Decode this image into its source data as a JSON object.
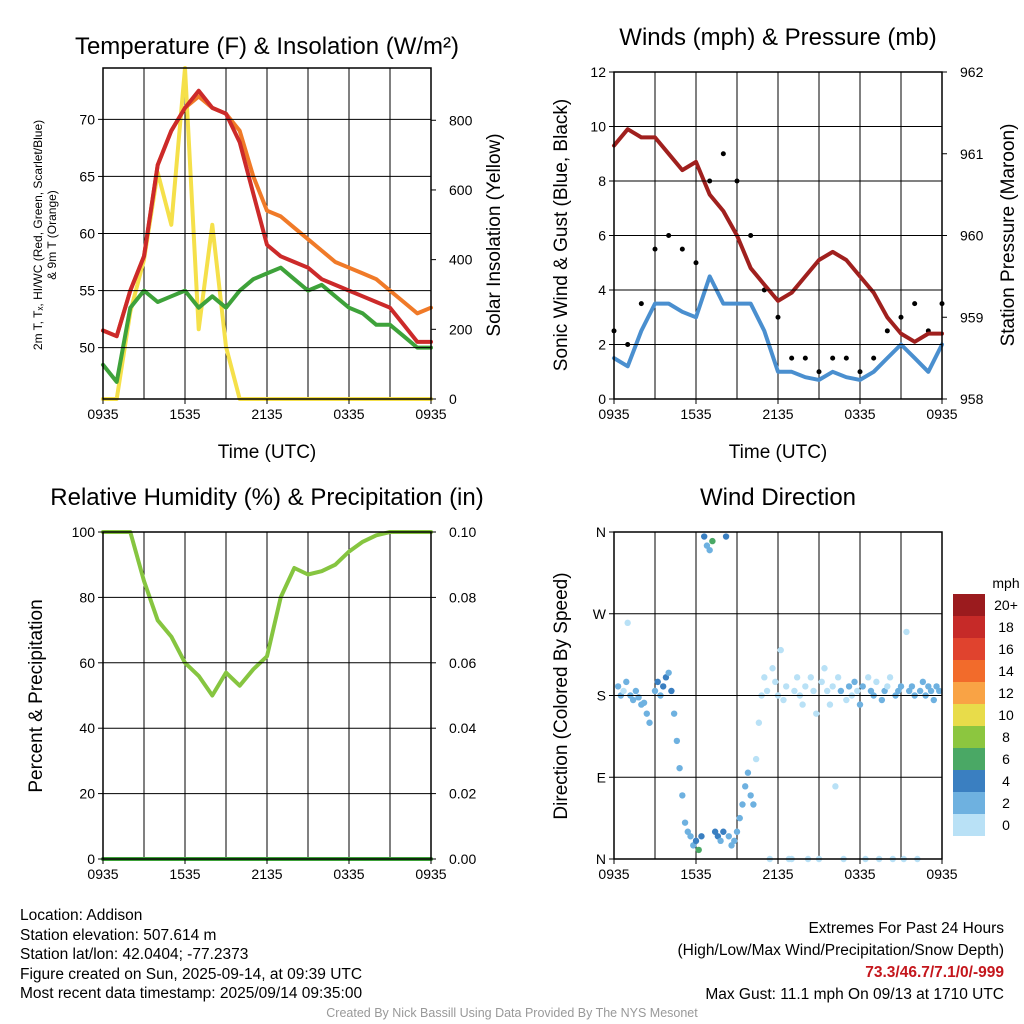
{
  "time_ticks": [
    "0935",
    "1535",
    "2135",
    "0335",
    "0935"
  ],
  "chart_data": [
    {
      "type": "line",
      "title": "Temperature (F) & Insolation (W/m²)",
      "xlabel": "Time (UTC)",
      "ylabel_left_lines": [
        "2m T, Tₓ, HI/WC (Red, Green, Scarlet/Blue)",
        "& 9m T (Orange)"
      ],
      "ylabel_right": "Solar Insolation (Yellow)",
      "ylim": [
        45.5,
        74.5
      ],
      "y2lim": [
        0,
        950
      ],
      "yticks": [
        50,
        55,
        60,
        65,
        70
      ],
      "y2ticks": [
        0,
        200,
        400,
        600,
        800
      ],
      "x_hours": [
        0,
        1,
        2,
        3,
        4,
        5,
        6,
        7,
        8,
        9,
        10,
        11,
        12,
        13,
        14,
        15,
        16,
        17,
        18,
        19,
        20,
        21,
        22,
        23,
        24
      ],
      "series": [
        {
          "color": "#f07a28",
          "values": [
            51.5,
            51,
            55,
            58,
            66,
            69,
            71,
            72,
            71,
            70.5,
            69,
            65,
            62,
            61.5,
            60.5,
            59.5,
            58.5,
            57.5,
            57,
            56.5,
            56,
            55,
            54,
            53,
            53.5
          ]
        },
        {
          "color": "#cc2a2a",
          "values": [
            51.5,
            51,
            55,
            58,
            66,
            69,
            71,
            72.5,
            71,
            70.5,
            68,
            63.5,
            59,
            58,
            57.5,
            57,
            56,
            55.5,
            55,
            54.5,
            54,
            53.5,
            52,
            50.5,
            50.5
          ]
        },
        {
          "color": "#3ea23a",
          "values": [
            48.5,
            47,
            53.5,
            55,
            54,
            54.5,
            55,
            53.5,
            54.5,
            53.5,
            55,
            56,
            56.5,
            57,
            56,
            55,
            55.5,
            54.5,
            53.5,
            53,
            52,
            52,
            51,
            50,
            50
          ]
        },
        {
          "color": "#f5e04a",
          "y_axis": "right",
          "values": [
            0,
            0,
            250,
            400,
            650,
            500,
            950,
            200,
            500,
            150,
            0,
            0,
            0,
            0,
            0,
            0,
            0,
            0,
            0,
            0,
            0,
            0,
            0,
            0,
            0
          ]
        }
      ]
    },
    {
      "type": "line",
      "title": "Winds (mph) & Pressure (mb)",
      "xlabel": "Time (UTC)",
      "ylabel_left": "Sonic Wind & Gust (Blue, Black)",
      "ylabel_right": "Station Pressure (Maroon)",
      "ylim": [
        0,
        12
      ],
      "y2lim": [
        958,
        962
      ],
      "yticks": [
        0,
        2,
        4,
        6,
        8,
        10,
        12
      ],
      "y2ticks": [
        958,
        959,
        960,
        961,
        962
      ],
      "x_hours": [
        0,
        1,
        2,
        3,
        4,
        5,
        6,
        7,
        8,
        9,
        10,
        11,
        12,
        13,
        14,
        15,
        16,
        17,
        18,
        19,
        20,
        21,
        22,
        23,
        24
      ],
      "series": [
        {
          "color": "#4a8fcf",
          "values": [
            1.5,
            1.2,
            2.5,
            3.5,
            3.5,
            3.2,
            3,
            4.5,
            3.5,
            3.5,
            3.5,
            2.5,
            1,
            1,
            0.8,
            0.7,
            1,
            0.8,
            0.7,
            1,
            1.5,
            2,
            1.5,
            1,
            2
          ]
        },
        {
          "color": "#000000",
          "values": [
            2.5,
            2,
            3.5,
            5.5,
            6,
            5.5,
            5,
            8,
            9,
            8,
            6,
            4,
            3,
            1.5,
            1.5,
            1,
            1.5,
            1.5,
            1,
            1.5,
            2.5,
            3,
            3.5,
            2.5,
            3.5
          ]
        },
        {
          "color": "#a0201e",
          "y_axis": "right",
          "values": [
            961.1,
            961.3,
            961.2,
            961.2,
            961,
            960.8,
            960.9,
            960.5,
            960.3,
            960,
            959.6,
            959.4,
            959.2,
            959.3,
            959.5,
            959.7,
            959.8,
            959.7,
            959.5,
            959.3,
            959,
            958.8,
            958.7,
            958.8,
            958.8
          ]
        }
      ]
    },
    {
      "type": "line",
      "title": "Relative Humidity (%) & Precipitation (in)",
      "xlabel": "",
      "ylabel_left": "Percent & Precipitation",
      "ylim": [
        0,
        100
      ],
      "y2lim": [
        0,
        0.1
      ],
      "yticks": [
        0,
        20,
        40,
        60,
        80,
        100
      ],
      "y2ticks": [
        "0.00",
        "0.02",
        "0.04",
        "0.06",
        "0.08",
        "0.10"
      ],
      "x_hours": [
        0,
        1,
        2,
        3,
        4,
        5,
        6,
        7,
        8,
        9,
        10,
        11,
        12,
        13,
        14,
        15,
        16,
        17,
        18,
        19,
        20,
        21,
        22,
        23,
        24
      ],
      "series": [
        {
          "color": "#86c540",
          "values": [
            100,
            100,
            100,
            85,
            73,
            68,
            60,
            56,
            50,
            57,
            53,
            58,
            62,
            80,
            89,
            87,
            88,
            90,
            94,
            97,
            99,
            100,
            100,
            100,
            100
          ]
        },
        {
          "color": "#3ea23a",
          "values": [
            0,
            0,
            0,
            0,
            0,
            0,
            0,
            0,
            0,
            0,
            0,
            0,
            0,
            0,
            0,
            0,
            0,
            0,
            0,
            0,
            0,
            0,
            0,
            0,
            0
          ]
        }
      ]
    },
    {
      "type": "scatter",
      "title": "Wind Direction",
      "xlabel": "",
      "ylabel_left": "Direction (Colored By Speed)",
      "ylim": [
        0,
        360
      ],
      "ytick_labels": [
        "N",
        "E",
        "S",
        "W",
        "N"
      ],
      "colorbar_title": "mph",
      "colorbar": [
        {
          "label": "20+",
          "color": "#9b1b1e"
        },
        {
          "label": "18",
          "color": "#c62a28"
        },
        {
          "label": "16",
          "color": "#e0432e"
        },
        {
          "label": "14",
          "color": "#f26b2b"
        },
        {
          "label": "12",
          "color": "#f9a345"
        },
        {
          "label": "10",
          "color": "#e8dc4a"
        },
        {
          "label": "8",
          "color": "#8cc63f"
        },
        {
          "label": "6",
          "color": "#4aa865"
        },
        {
          "label": "4",
          "color": "#3a7fc1"
        },
        {
          "label": "2",
          "color": "#6eb1e0"
        },
        {
          "label": "0",
          "color": "#b9e1f6"
        }
      ],
      "points": [
        {
          "t": 0.3,
          "d": 190,
          "s": 2
        },
        {
          "t": 0.5,
          "d": 180,
          "s": 2
        },
        {
          "t": 0.7,
          "d": 185,
          "s": 1
        },
        {
          "t": 0.9,
          "d": 195,
          "s": 2
        },
        {
          "t": 1.0,
          "d": 260,
          "s": 1
        },
        {
          "t": 1.2,
          "d": 180,
          "s": 2
        },
        {
          "t": 1.4,
          "d": 175,
          "s": 3
        },
        {
          "t": 1.6,
          "d": 185,
          "s": 2
        },
        {
          "t": 1.8,
          "d": 178,
          "s": 2
        },
        {
          "t": 2.0,
          "d": 170,
          "s": 3
        },
        {
          "t": 2.2,
          "d": 172,
          "s": 2
        },
        {
          "t": 2.4,
          "d": 160,
          "s": 3
        },
        {
          "t": 2.6,
          "d": 150,
          "s": 3
        },
        {
          "t": 3.0,
          "d": 185,
          "s": 3
        },
        {
          "t": 3.2,
          "d": 195,
          "s": 4
        },
        {
          "t": 3.4,
          "d": 180,
          "s": 3
        },
        {
          "t": 3.6,
          "d": 190,
          "s": 4
        },
        {
          "t": 3.8,
          "d": 200,
          "s": 4
        },
        {
          "t": 4.0,
          "d": 205,
          "s": 3
        },
        {
          "t": 4.2,
          "d": 185,
          "s": 4
        },
        {
          "t": 4.4,
          "d": 160,
          "s": 3
        },
        {
          "t": 4.6,
          "d": 130,
          "s": 3
        },
        {
          "t": 4.8,
          "d": 100,
          "s": 3
        },
        {
          "t": 5.0,
          "d": 70,
          "s": 3
        },
        {
          "t": 5.2,
          "d": 40,
          "s": 3
        },
        {
          "t": 5.4,
          "d": 30,
          "s": 3
        },
        {
          "t": 5.6,
          "d": 25,
          "s": 2
        },
        {
          "t": 5.8,
          "d": 15,
          "s": 3
        },
        {
          "t": 6.0,
          "d": 20,
          "s": 4
        },
        {
          "t": 6.2,
          "d": 10,
          "s": 6
        },
        {
          "t": 6.4,
          "d": 25,
          "s": 4
        },
        {
          "t": 6.6,
          "d": 355,
          "s": 4
        },
        {
          "t": 6.8,
          "d": 345,
          "s": 3
        },
        {
          "t": 7.0,
          "d": 340,
          "s": 3
        },
        {
          "t": 7.2,
          "d": 350,
          "s": 6
        },
        {
          "t": 7.4,
          "d": 30,
          "s": 4
        },
        {
          "t": 7.6,
          "d": 25,
          "s": 4
        },
        {
          "t": 7.8,
          "d": 20,
          "s": 3
        },
        {
          "t": 8.0,
          "d": 30,
          "s": 4
        },
        {
          "t": 8.2,
          "d": 355,
          "s": 4
        },
        {
          "t": 8.4,
          "d": 25,
          "s": 3
        },
        {
          "t": 8.6,
          "d": 15,
          "s": 3
        },
        {
          "t": 8.8,
          "d": 20,
          "s": 2
        },
        {
          "t": 9.0,
          "d": 30,
          "s": 2
        },
        {
          "t": 9.2,
          "d": 45,
          "s": 2
        },
        {
          "t": 9.4,
          "d": 60,
          "s": 3
        },
        {
          "t": 9.6,
          "d": 80,
          "s": 2
        },
        {
          "t": 9.8,
          "d": 95,
          "s": 2
        },
        {
          "t": 10.0,
          "d": 70,
          "s": 2
        },
        {
          "t": 10.2,
          "d": 60,
          "s": 2
        },
        {
          "t": 10.4,
          "d": 110,
          "s": 1
        },
        {
          "t": 10.6,
          "d": 150,
          "s": 1
        },
        {
          "t": 10.8,
          "d": 180,
          "s": 1
        },
        {
          "t": 11.0,
          "d": 200,
          "s": 1
        },
        {
          "t": 11.2,
          "d": 185,
          "s": 1
        },
        {
          "t": 11.4,
          "d": 0,
          "s": 0
        },
        {
          "t": 11.6,
          "d": 210,
          "s": 1
        },
        {
          "t": 11.8,
          "d": 195,
          "s": 1
        },
        {
          "t": 12.0,
          "d": 180,
          "s": 1
        },
        {
          "t": 12.2,
          "d": 230,
          "s": 0
        },
        {
          "t": 12.4,
          "d": 175,
          "s": 1
        },
        {
          "t": 12.6,
          "d": 190,
          "s": 1
        },
        {
          "t": 12.8,
          "d": 0,
          "s": 0
        },
        {
          "t": 13.0,
          "d": 0,
          "s": 0
        },
        {
          "t": 13.2,
          "d": 185,
          "s": 1
        },
        {
          "t": 13.4,
          "d": 200,
          "s": 1
        },
        {
          "t": 13.6,
          "d": 180,
          "s": 1
        },
        {
          "t": 13.8,
          "d": 170,
          "s": 1
        },
        {
          "t": 14.0,
          "d": 190,
          "s": 1
        },
        {
          "t": 14.2,
          "d": 0,
          "s": 0
        },
        {
          "t": 14.4,
          "d": 200,
          "s": 1
        },
        {
          "t": 14.6,
          "d": 185,
          "s": 1
        },
        {
          "t": 14.8,
          "d": 160,
          "s": 1
        },
        {
          "t": 15.0,
          "d": 0,
          "s": 0
        },
        {
          "t": 15.2,
          "d": 195,
          "s": 1
        },
        {
          "t": 15.4,
          "d": 210,
          "s": 1
        },
        {
          "t": 15.6,
          "d": 185,
          "s": 1
        },
        {
          "t": 15.8,
          "d": 170,
          "s": 1
        },
        {
          "t": 16.0,
          "d": 190,
          "s": 1
        },
        {
          "t": 16.2,
          "d": 80,
          "s": 1
        },
        {
          "t": 16.4,
          "d": 200,
          "s": 1
        },
        {
          "t": 16.6,
          "d": 185,
          "s": 2
        },
        {
          "t": 16.8,
          "d": 0,
          "s": 0
        },
        {
          "t": 17.0,
          "d": 175,
          "s": 1
        },
        {
          "t": 17.2,
          "d": 190,
          "s": 2
        },
        {
          "t": 17.4,
          "d": 180,
          "s": 1
        },
        {
          "t": 17.6,
          "d": 195,
          "s": 2
        },
        {
          "t": 17.8,
          "d": 185,
          "s": 1
        },
        {
          "t": 18.0,
          "d": 170,
          "s": 2
        },
        {
          "t": 18.2,
          "d": 190,
          "s": 2
        },
        {
          "t": 18.4,
          "d": 0,
          "s": 0
        },
        {
          "t": 18.6,
          "d": 200,
          "s": 1
        },
        {
          "t": 18.8,
          "d": 185,
          "s": 2
        },
        {
          "t": 19.0,
          "d": 180,
          "s": 2
        },
        {
          "t": 19.2,
          "d": 195,
          "s": 1
        },
        {
          "t": 19.4,
          "d": 0,
          "s": 0
        },
        {
          "t": 19.6,
          "d": 175,
          "s": 2
        },
        {
          "t": 19.8,
          "d": 185,
          "s": 2
        },
        {
          "t": 20.0,
          "d": 190,
          "s": 1
        },
        {
          "t": 20.2,
          "d": 200,
          "s": 1
        },
        {
          "t": 20.4,
          "d": 0,
          "s": 0
        },
        {
          "t": 20.6,
          "d": 180,
          "s": 2
        },
        {
          "t": 20.8,
          "d": 185,
          "s": 2
        },
        {
          "t": 21.0,
          "d": 190,
          "s": 2
        },
        {
          "t": 21.2,
          "d": 0,
          "s": 0
        },
        {
          "t": 21.4,
          "d": 250,
          "s": 1
        },
        {
          "t": 21.6,
          "d": 185,
          "s": 2
        },
        {
          "t": 21.8,
          "d": 190,
          "s": 2
        },
        {
          "t": 22.0,
          "d": 180,
          "s": 2
        },
        {
          "t": 22.2,
          "d": 0,
          "s": 0
        },
        {
          "t": 22.4,
          "d": 185,
          "s": 2
        },
        {
          "t": 22.6,
          "d": 195,
          "s": 2
        },
        {
          "t": 22.8,
          "d": 180,
          "s": 3
        },
        {
          "t": 23.0,
          "d": 190,
          "s": 2
        },
        {
          "t": 23.2,
          "d": 185,
          "s": 3
        },
        {
          "t": 23.4,
          "d": 175,
          "s": 2
        },
        {
          "t": 23.6,
          "d": 190,
          "s": 2
        },
        {
          "t": 23.8,
          "d": 185,
          "s": 2
        }
      ]
    }
  ],
  "info": {
    "location": "Location: Addison",
    "elevation": "Station elevation: 507.614 m",
    "latlon": "Station lat/lon: 42.0404; -77.2373",
    "created": "Figure created on Sun, 2025-09-14, at 09:39 UTC",
    "recent": "Most recent data timestamp: 2025/09/14 09:35:00"
  },
  "extremes": {
    "title": "Extremes For Past 24 Hours",
    "subtitle": "(High/Low/Max Wind/Precipitation/Snow Depth)",
    "values": "73.3/46.7/7.1/0/-999",
    "max_gust": "Max Gust: 11.1 mph On 09/13 at 1710 UTC"
  },
  "credit": "Created By Nick Bassill Using Data Provided By The NYS Mesonet"
}
